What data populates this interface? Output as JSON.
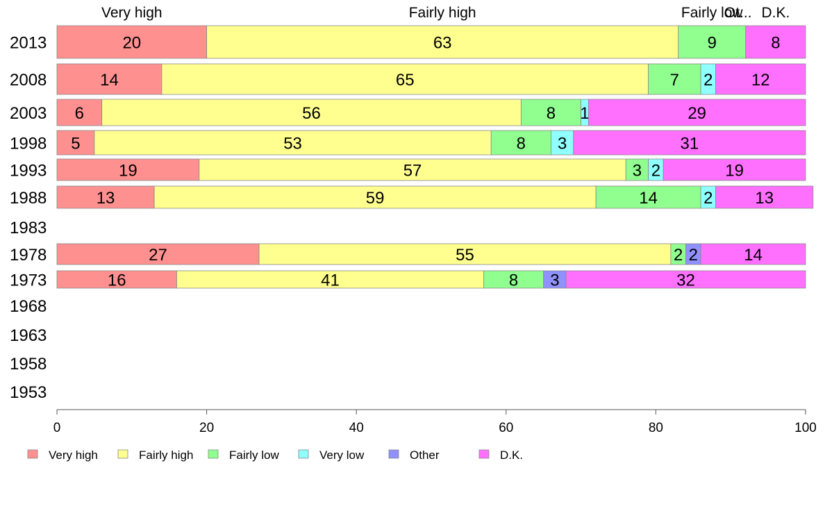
{
  "chart_data": {
    "type": "bar",
    "orientation": "horizontal",
    "stacked": true,
    "categories": [
      "2013",
      "2008",
      "2003",
      "1998",
      "1993",
      "1988",
      "1983",
      "1978",
      "1973",
      "1968",
      "1963",
      "1958",
      "1953"
    ],
    "series": [
      {
        "name": "Very high",
        "color": "#ff9090",
        "values": [
          20,
          14,
          6,
          5,
          19,
          13,
          null,
          27,
          16,
          null,
          null,
          null,
          null
        ]
      },
      {
        "name": "Fairly high",
        "color": "#ffff90",
        "values": [
          63,
          65,
          56,
          53,
          57,
          59,
          null,
          55,
          41,
          null,
          null,
          null,
          null
        ]
      },
      {
        "name": "Fairly low",
        "color": "#90ff90",
        "values": [
          9,
          7,
          8,
          8,
          3,
          14,
          null,
          2,
          8,
          null,
          null,
          null,
          null
        ]
      },
      {
        "name": "Very low",
        "color": "#90ffff",
        "values": [
          0,
          2,
          1,
          3,
          2,
          2,
          null,
          0,
          0,
          null,
          null,
          null,
          null
        ]
      },
      {
        "name": "Other",
        "color": "#9090ff",
        "values": [
          0,
          0,
          0,
          0,
          0,
          0,
          null,
          2,
          3,
          null,
          null,
          null,
          null
        ]
      },
      {
        "name": "D.K.",
        "color": "#ff70ff",
        "values": [
          8,
          12,
          29,
          31,
          19,
          13,
          null,
          14,
          32,
          null,
          null,
          null,
          null
        ]
      }
    ],
    "top_labels": [
      "Very high",
      "Fairly high",
      "Fairly low",
      "Ot...",
      "D.K."
    ],
    "xlim": [
      0,
      100
    ],
    "xticks": [
      0,
      20,
      40,
      60,
      80,
      100
    ],
    "grid": false,
    "legend_position": "bottom"
  }
}
